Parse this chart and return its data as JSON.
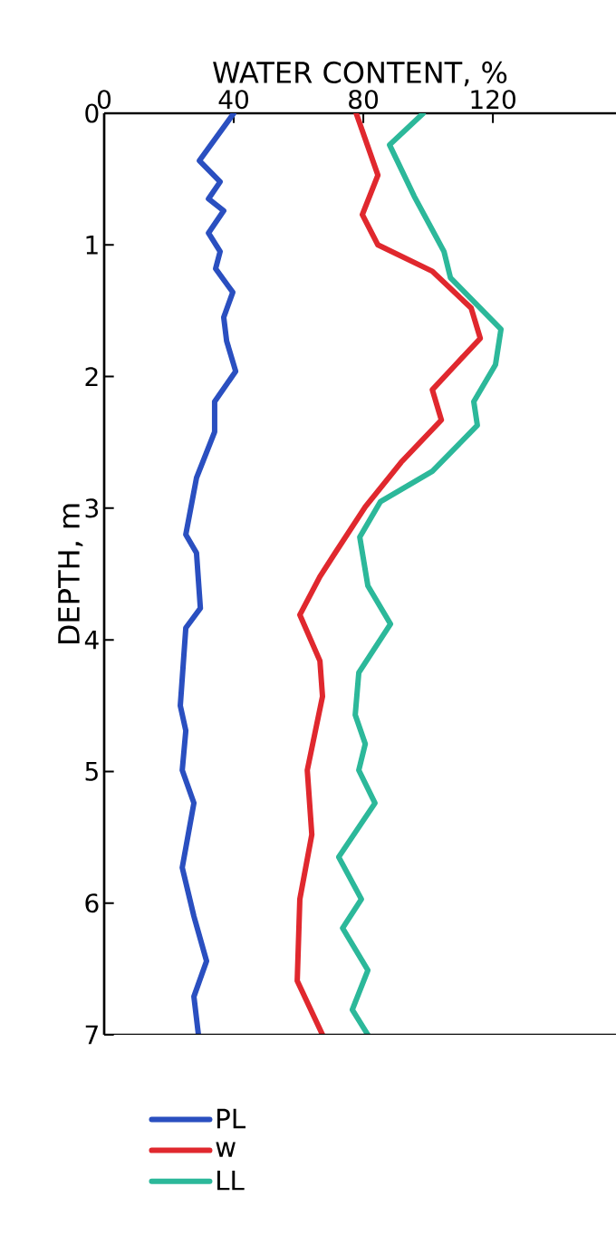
{
  "chart_data": {
    "type": "line",
    "xlabel": "WATER CONTENT, %",
    "ylabel": "DEPTH, m",
    "xlim": [
      0,
      158
    ],
    "xticks": [
      0,
      40,
      80,
      120
    ],
    "ylim": [
      7,
      0
    ],
    "yticks": [
      0,
      1,
      2,
      3,
      4,
      5,
      6,
      7
    ],
    "legend": "bottom",
    "series": [
      {
        "name": "PL",
        "color": "#2a4fc0",
        "x": [
          40.0,
          29.4,
          35.8,
          32.2,
          36.9,
          32.2,
          35.8,
          34.4,
          39.7,
          36.9,
          37.8,
          40.6,
          34.1,
          34.1,
          28.5,
          25.2,
          28.5,
          29.7,
          25.2,
          23.5,
          25.2,
          24.1,
          27.7,
          24.1,
          27.7,
          31.6,
          27.7,
          29.1
        ],
        "values": [
          0,
          0.36,
          0.52,
          0.65,
          0.74,
          0.91,
          1.05,
          1.18,
          1.36,
          1.55,
          1.73,
          1.96,
          2.19,
          2.42,
          2.77,
          3.2,
          3.34,
          3.76,
          3.91,
          4.5,
          4.69,
          4.99,
          5.24,
          5.73,
          6.1,
          6.44,
          6.71,
          7.0
        ]
      },
      {
        "name": "w",
        "color": "#e0282e",
        "x": [
          77.8,
          84.5,
          79.7,
          84.5,
          101.3,
          113.3,
          116.1,
          108.5,
          101.3,
          104.1,
          91.7,
          80.6,
          71.3,
          66.6,
          60.4,
          66.6,
          67.4,
          62.7,
          64.1,
          60.4,
          59.6,
          67.4
        ],
        "values": [
          0,
          0.47,
          0.77,
          1.0,
          1.2,
          1.48,
          1.71,
          1.91,
          2.1,
          2.33,
          2.65,
          2.99,
          3.34,
          3.52,
          3.81,
          4.16,
          4.43,
          4.99,
          5.48,
          5.97,
          6.59,
          7.0
        ]
      },
      {
        "name": "LL",
        "color": "#2cb89a",
        "x": [
          98.5,
          88.1,
          95.7,
          104.9,
          106.9,
          122.5,
          120.8,
          114.1,
          115.2,
          101.3,
          85.3,
          78.9,
          81.4,
          88.4,
          78.6,
          77.5,
          80.6,
          78.6,
          83.6,
          72.4,
          79.4,
          73.6,
          81.4,
          76.6,
          81.4
        ],
        "values": [
          0,
          0.24,
          0.63,
          1.05,
          1.25,
          1.64,
          1.91,
          2.19,
          2.37,
          2.72,
          2.95,
          3.22,
          3.59,
          3.88,
          4.25,
          4.57,
          4.79,
          4.99,
          5.24,
          5.65,
          5.97,
          6.19,
          6.51,
          6.81,
          7.0
        ]
      }
    ]
  }
}
